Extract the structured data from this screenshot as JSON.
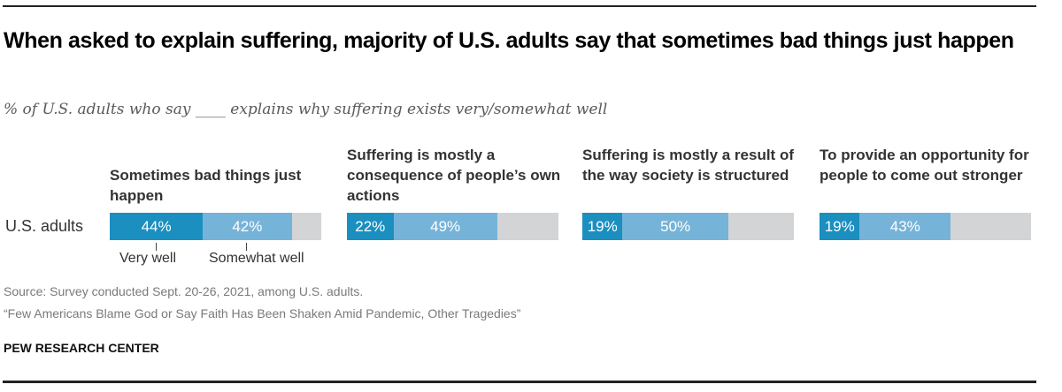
{
  "title": "When asked to explain suffering, majority of U.S. adults say that sometimes bad things just happen",
  "subtitle": "% of U.S. adults who say ____ explains why suffering exists very/somewhat well",
  "source": "Source: Survey conducted Sept. 20-26, 2021, among U.S. adults.",
  "report": "“Few Americans Blame God or Say Faith Has Been Shaken Amid Pandemic, Other Tragedies”",
  "brand": "PEW RESEARCH CENTER",
  "colors": {
    "very_well": "#1a8fc0",
    "somewhat_well": "#76b3d8",
    "remainder": "#d3d4d6"
  },
  "chart_data": {
    "type": "bar",
    "subtype": "stacked-horizontal-small-multiples",
    "title": "When asked to explain suffering, majority of U.S. adults say that sometimes bad things just happen",
    "subtitle": "% of U.S. adults who say ____ explains why suffering exists very/somewhat well",
    "row_label": "U.S. adults",
    "xlim": [
      0,
      100
    ],
    "legend": [
      "Very well",
      "Somewhat well"
    ],
    "legend_placement": "below-first-bar",
    "categories": [
      "Sometimes bad things just happen",
      "Suffering is mostly a consequence of people’s own actions",
      "Suffering is mostly a result of the way society is structured",
      "To provide an opportunity for people to come out stronger"
    ],
    "series": [
      {
        "name": "Very well",
        "values": [
          44,
          22,
          19,
          19
        ]
      },
      {
        "name": "Somewhat well",
        "values": [
          42,
          49,
          50,
          43
        ]
      }
    ],
    "labels": [
      [
        "44%",
        "42%"
      ],
      [
        "22%",
        "49%"
      ],
      [
        "19%",
        "50%"
      ],
      [
        "19%",
        "43%"
      ]
    ]
  }
}
